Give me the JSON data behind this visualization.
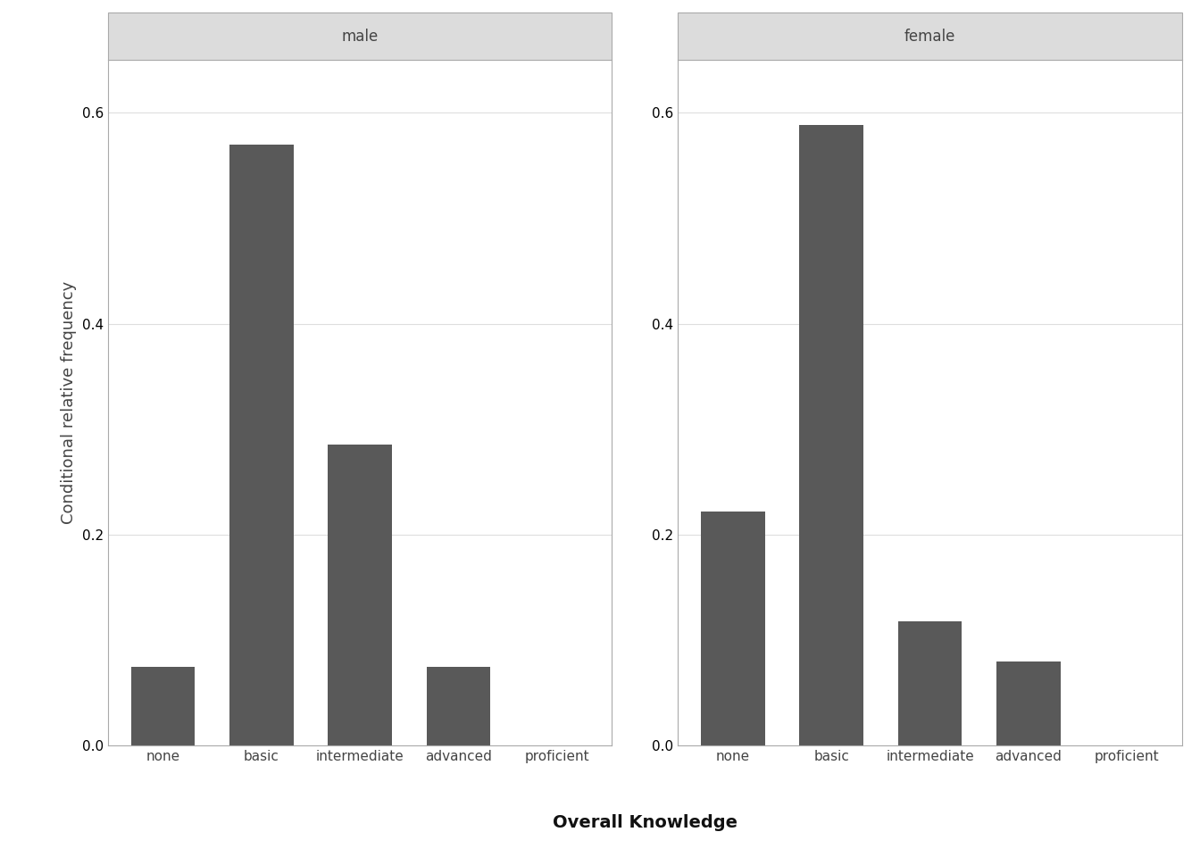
{
  "panels": [
    {
      "label": "male",
      "categories": [
        "none",
        "basic",
        "intermediate",
        "advanced",
        "proficient"
      ],
      "values": [
        0.075,
        0.57,
        0.285,
        0.075,
        0.0
      ]
    },
    {
      "label": "female",
      "categories": [
        "none",
        "basic",
        "intermediate",
        "advanced",
        "proficient"
      ],
      "values": [
        0.222,
        0.588,
        0.118,
        0.08,
        0.0
      ]
    }
  ],
  "ylabel": "Conditional relative frequency",
  "xlabel": "Overall Knowledge",
  "ylim": [
    0,
    0.65
  ],
  "yticks": [
    0.0,
    0.2,
    0.4,
    0.6
  ],
  "bar_color": "#595959",
  "background_color": "#ffffff",
  "panel_header_color": "#dcdcdc",
  "panel_header_edge_color": "#aaaaaa",
  "grid_color": "#dedede",
  "bar_edge_color": "none",
  "bar_width": 0.65,
  "title_fontsize": 12,
  "axis_label_fontsize": 13,
  "tick_fontsize": 11,
  "xlabel_fontsize": 14,
  "outer_border_color": "#aaaaaa"
}
